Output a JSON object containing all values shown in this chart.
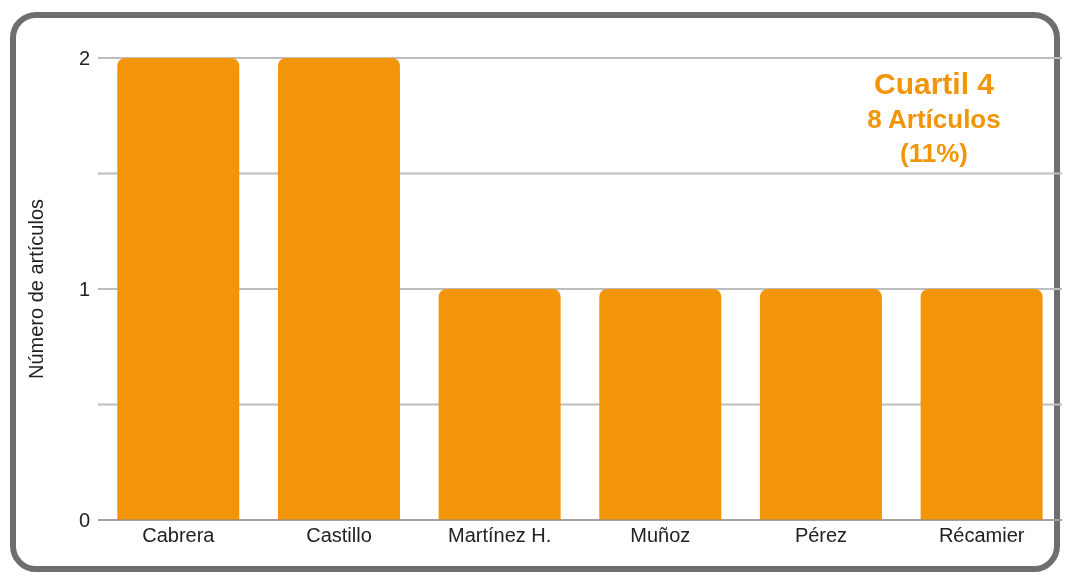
{
  "chart_data": {
    "type": "bar",
    "ylabel": "Número de artículos",
    "categories": [
      "Cabrera",
      "Castillo",
      "Martínez H.",
      "Muñoz",
      "Pérez",
      "Récamier"
    ],
    "values": [
      2,
      2,
      1,
      1,
      1,
      1
    ],
    "color": "#f39508",
    "ylim": [
      0,
      2
    ],
    "yticks": [
      0,
      {
        "value": 0.5,
        "label": null
      },
      1,
      {
        "value": 1.5,
        "label": null
      },
      2
    ],
    "grid": "y",
    "annotations": [
      "Cuartil 4",
      "8 Artículos",
      "(11%)"
    ]
  }
}
